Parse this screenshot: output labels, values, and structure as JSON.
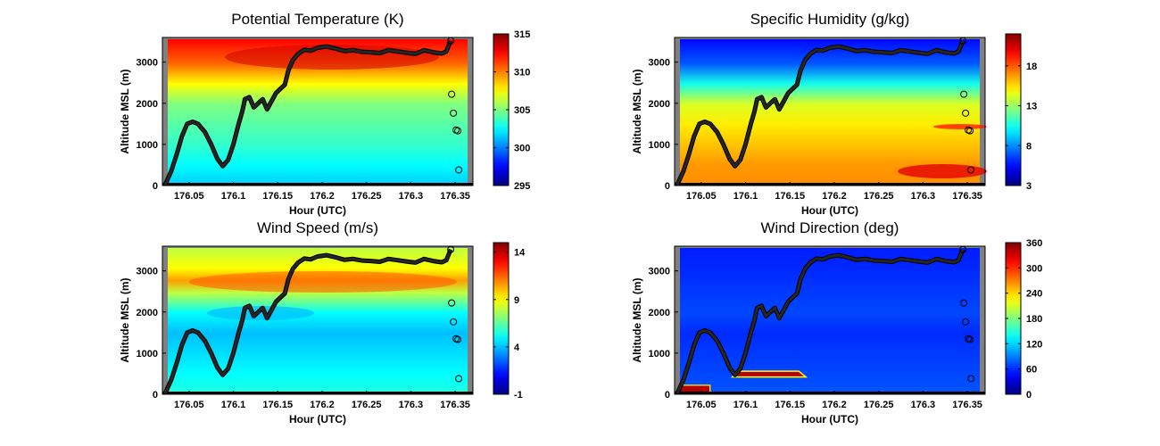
{
  "chart_data": [
    {
      "type": "heatmap",
      "title": "Potential Temperature (K)",
      "xlabel": "Hour (UTC)",
      "ylabel": "Altitude MSL (m)",
      "xlim": [
        176.02,
        176.37
      ],
      "ylim": [
        0,
        3600
      ],
      "xticks": [
        "176.05",
        "176.1",
        "176.15",
        "176.2",
        "176.25",
        "176.3",
        "176.35"
      ],
      "yticks": [
        "0",
        "1000",
        "2000",
        "3000"
      ],
      "colorbar_range": [
        295,
        315
      ],
      "colorbar_ticks": [
        "295",
        "300",
        "305",
        "310",
        "315"
      ],
      "colormap": "jet",
      "profile": [
        [
          0,
          301.5
        ],
        [
          500,
          302.5
        ],
        [
          1000,
          303.5
        ],
        [
          1500,
          304.2
        ],
        [
          2000,
          305
        ],
        [
          2500,
          307.5
        ],
        [
          3000,
          310.5
        ],
        [
          3600,
          312.5
        ]
      ]
    },
    {
      "type": "heatmap",
      "title": "Specific Humidity (g/kg)",
      "xlabel": "Hour (UTC)",
      "ylabel": "Altitude MSL (m)",
      "xlim": [
        176.02,
        176.37
      ],
      "ylim": [
        0,
        3600
      ],
      "xticks": [
        "176.05",
        "176.1",
        "176.15",
        "176.2",
        "176.25",
        "176.3",
        "176.35"
      ],
      "yticks": [
        "0",
        "1000",
        "2000",
        "3000"
      ],
      "colorbar_range": [
        3,
        22
      ],
      "colorbar_ticks": [
        "3",
        "8",
        "13",
        "18"
      ],
      "colormap": "jet",
      "profile": [
        [
          0,
          17
        ],
        [
          500,
          16.8
        ],
        [
          1000,
          16
        ],
        [
          1500,
          15.2
        ],
        [
          2000,
          14.2
        ],
        [
          2500,
          10.5
        ],
        [
          3000,
          7
        ],
        [
          3600,
          5.5
        ]
      ]
    },
    {
      "type": "heatmap",
      "title": "Wind Speed (m/s)",
      "xlabel": "Hour (UTC)",
      "ylabel": "Altitude MSL (m)",
      "xlim": [
        176.02,
        176.37
      ],
      "ylim": [
        0,
        3600
      ],
      "xticks": [
        "176.05",
        "176.1",
        "176.15",
        "176.2",
        "176.25",
        "176.3",
        "176.35"
      ],
      "yticks": [
        "0",
        "1000",
        "2000",
        "3000"
      ],
      "colorbar_range": [
        -1,
        15
      ],
      "colorbar_ticks": [
        "-1",
        "4",
        "9",
        "14"
      ],
      "colormap": "jet",
      "profile": [
        [
          0,
          5.5
        ],
        [
          500,
          5
        ],
        [
          1000,
          4.5
        ],
        [
          1500,
          4
        ],
        [
          2000,
          5
        ],
        [
          2500,
          8
        ],
        [
          2800,
          10.5
        ],
        [
          3100,
          9
        ],
        [
          3600,
          8
        ]
      ]
    },
    {
      "type": "heatmap",
      "title": "Wind Direction (deg)",
      "xlabel": "Hour (UTC)",
      "ylabel": "Altitude MSL (m)",
      "xlim": [
        176.02,
        176.37
      ],
      "ylim": [
        0,
        3600
      ],
      "xticks": [
        "176.05",
        "176.1",
        "176.15",
        "176.2",
        "176.25",
        "176.3",
        "176.35"
      ],
      "yticks": [
        "0",
        "1000",
        "2000",
        "3000"
      ],
      "colorbar_range": [
        0,
        360
      ],
      "colorbar_ticks": [
        "0",
        "60",
        "120",
        "180",
        "240",
        "300",
        "360"
      ],
      "colormap": "jet",
      "profile": [
        [
          0,
          75
        ],
        [
          500,
          70
        ],
        [
          1000,
          65
        ],
        [
          1500,
          60
        ],
        [
          2000,
          70
        ],
        [
          2500,
          65
        ],
        [
          3000,
          60
        ],
        [
          3600,
          55
        ]
      ]
    }
  ],
  "flight_track": [
    [
      176.023,
      20
    ],
    [
      176.03,
      350
    ],
    [
      176.036,
      750
    ],
    [
      176.042,
      1200
    ],
    [
      176.048,
      1500
    ],
    [
      176.054,
      1550
    ],
    [
      176.06,
      1500
    ],
    [
      176.068,
      1300
    ],
    [
      176.075,
      1000
    ],
    [
      176.082,
      650
    ],
    [
      176.088,
      470
    ],
    [
      176.094,
      620
    ],
    [
      176.1,
      1000
    ],
    [
      176.106,
      1500
    ],
    [
      176.11,
      1800
    ],
    [
      176.113,
      2100
    ],
    [
      176.118,
      2150
    ],
    [
      176.123,
      1900
    ],
    [
      176.128,
      2000
    ],
    [
      176.133,
      2100
    ],
    [
      176.138,
      1850
    ],
    [
      176.143,
      2050
    ],
    [
      176.148,
      2250
    ],
    [
      176.153,
      2350
    ],
    [
      176.158,
      2450
    ],
    [
      176.162,
      2800
    ],
    [
      176.167,
      3050
    ],
    [
      176.173,
      3200
    ],
    [
      176.18,
      3300
    ],
    [
      176.187,
      3280
    ],
    [
      176.195,
      3350
    ],
    [
      176.205,
      3380
    ],
    [
      176.215,
      3330
    ],
    [
      176.225,
      3270
    ],
    [
      176.235,
      3290
    ],
    [
      176.245,
      3250
    ],
    [
      176.255,
      3240
    ],
    [
      176.265,
      3220
    ],
    [
      176.275,
      3290
    ],
    [
      176.285,
      3260
    ],
    [
      176.295,
      3230
    ],
    [
      176.305,
      3200
    ],
    [
      176.315,
      3290
    ],
    [
      176.325,
      3240
    ],
    [
      176.335,
      3210
    ],
    [
      176.34,
      3260
    ],
    [
      176.343,
      3420
    ],
    [
      176.345,
      3520
    ]
  ],
  "sonde_points": [
    [
      176.346,
      2220
    ],
    [
      176.348,
      1760
    ],
    [
      176.351,
      1350
    ],
    [
      176.353,
      1330
    ],
    [
      176.354,
      380
    ]
  ]
}
